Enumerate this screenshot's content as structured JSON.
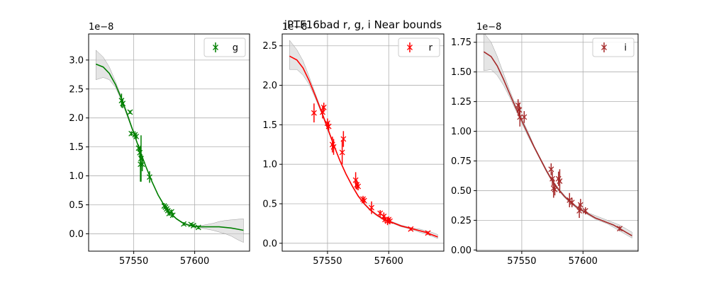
{
  "figure_title": "iPTF16bad  r, g, i Near bounds",
  "chart_data": [
    {
      "type": "scatter",
      "band": "g",
      "color": "#008000",
      "offset_label": "1e−8",
      "xlim": [
        57513,
        57645
      ],
      "ylim": [
        -0.3,
        3.45
      ],
      "xticks": [
        57550,
        57600
      ],
      "xtick_labels": [
        "57550",
        "57600"
      ],
      "yticks": [
        0.0,
        0.5,
        1.0,
        1.5,
        2.0,
        2.5,
        3.0
      ],
      "ytick_labels": [
        "0.0",
        "0.5",
        "1.0",
        "1.5",
        "2.0",
        "2.5",
        "3.0"
      ],
      "grid": true,
      "legend": {
        "label": "g",
        "position": "top-right"
      },
      "points": [
        {
          "x": 57540,
          "y": 2.3,
          "err": 0.12
        },
        {
          "x": 57541,
          "y": 2.25,
          "err": 0.08
        },
        {
          "x": 57547,
          "y": 2.1,
          "err": 0.03
        },
        {
          "x": 57548,
          "y": 1.73,
          "err": 0.04
        },
        {
          "x": 57551,
          "y": 1.71,
          "err": 0.06
        },
        {
          "x": 57552,
          "y": 1.68,
          "err": 0.05
        },
        {
          "x": 57554,
          "y": 1.48,
          "err": 0.06
        },
        {
          "x": 57555,
          "y": 1.4,
          "err": 0.1
        },
        {
          "x": 57555.5,
          "y": 1.2,
          "err": 0.3
        },
        {
          "x": 57556,
          "y": 1.3,
          "err": 0.4
        },
        {
          "x": 57557,
          "y": 1.2,
          "err": 0.12
        },
        {
          "x": 57563,
          "y": 0.98,
          "err": 0.1
        },
        {
          "x": 57575,
          "y": 0.48,
          "err": 0.05
        },
        {
          "x": 57576,
          "y": 0.46,
          "err": 0.04
        },
        {
          "x": 57577,
          "y": 0.43,
          "err": 0.04
        },
        {
          "x": 57578,
          "y": 0.4,
          "err": 0.05
        },
        {
          "x": 57579,
          "y": 0.35,
          "err": 0.04
        },
        {
          "x": 57581,
          "y": 0.38,
          "err": 0.04
        },
        {
          "x": 57582,
          "y": 0.32,
          "err": 0.04
        },
        {
          "x": 57591,
          "y": 0.17,
          "err": 0.03
        },
        {
          "x": 57597,
          "y": 0.16,
          "err": 0.03
        },
        {
          "x": 57599,
          "y": 0.14,
          "err": 0.03
        },
        {
          "x": 57603,
          "y": 0.11,
          "err": 0.03
        }
      ],
      "fit": {
        "x": [
          57519,
          57525,
          57530,
          57535,
          57540,
          57545,
          57550,
          57555,
          57560,
          57565,
          57570,
          57575,
          57580,
          57585,
          57590,
          57595,
          57600,
          57605,
          57610,
          57615,
          57620,
          57625,
          57630,
          57635,
          57640
        ],
        "y": [
          2.93,
          2.88,
          2.77,
          2.58,
          2.33,
          2.04,
          1.74,
          1.44,
          1.16,
          0.9,
          0.67,
          0.49,
          0.36,
          0.26,
          0.19,
          0.15,
          0.13,
          0.12,
          0.12,
          0.12,
          0.12,
          0.11,
          0.1,
          0.08,
          0.06
        ],
        "lower": [
          2.66,
          2.7,
          2.66,
          2.53,
          2.3,
          2.01,
          1.72,
          1.43,
          1.15,
          0.89,
          0.66,
          0.48,
          0.35,
          0.25,
          0.18,
          0.14,
          0.12,
          0.1,
          0.08,
          0.06,
          0.03,
          0.0,
          -0.04,
          -0.1,
          -0.15
        ],
        "upper": [
          3.17,
          3.05,
          2.88,
          2.63,
          2.36,
          2.07,
          1.76,
          1.45,
          1.17,
          0.91,
          0.68,
          0.5,
          0.37,
          0.27,
          0.2,
          0.16,
          0.14,
          0.14,
          0.16,
          0.18,
          0.21,
          0.23,
          0.24,
          0.25,
          0.26
        ]
      }
    },
    {
      "type": "scatter",
      "band": "r",
      "color": "#ff0000",
      "offset_label": "1e−8",
      "xlim": [
        57513,
        57645
      ],
      "ylim": [
        -0.1,
        2.65
      ],
      "xticks": [
        57550,
        57600
      ],
      "xtick_labels": [
        "57550",
        "57600"
      ],
      "yticks": [
        0.0,
        0.5,
        1.0,
        1.5,
        2.0,
        2.5
      ],
      "ytick_labels": [
        "0.0",
        "0.5",
        "1.0",
        "1.5",
        "2.0",
        "2.5"
      ],
      "grid": true,
      "legend": {
        "label": "r",
        "position": "top-right"
      },
      "points": [
        {
          "x": 57539,
          "y": 1.65,
          "err": 0.12
        },
        {
          "x": 57546,
          "y": 1.66,
          "err": 0.08
        },
        {
          "x": 57547,
          "y": 1.72,
          "err": 0.06
        },
        {
          "x": 57550,
          "y": 1.52,
          "err": 0.06
        },
        {
          "x": 57551,
          "y": 1.48,
          "err": 0.05
        },
        {
          "x": 57554,
          "y": 1.25,
          "err": 0.1
        },
        {
          "x": 57555,
          "y": 1.22,
          "err": 0.1
        },
        {
          "x": 57562,
          "y": 1.15,
          "err": 0.15
        },
        {
          "x": 57563,
          "y": 1.32,
          "err": 0.1
        },
        {
          "x": 57573,
          "y": 0.8,
          "err": 0.1
        },
        {
          "x": 57574,
          "y": 0.74,
          "err": 0.06
        },
        {
          "x": 57575,
          "y": 0.72,
          "err": 0.05
        },
        {
          "x": 57579,
          "y": 0.56,
          "err": 0.04
        },
        {
          "x": 57580,
          "y": 0.54,
          "err": 0.04
        },
        {
          "x": 57586,
          "y": 0.45,
          "err": 0.08
        },
        {
          "x": 57593,
          "y": 0.38,
          "err": 0.04
        },
        {
          "x": 57596,
          "y": 0.34,
          "err": 0.05
        },
        {
          "x": 57597,
          "y": 0.3,
          "err": 0.04
        },
        {
          "x": 57599,
          "y": 0.28,
          "err": 0.05
        },
        {
          "x": 57600,
          "y": 0.3,
          "err": 0.04
        },
        {
          "x": 57601,
          "y": 0.28,
          "err": 0.04
        },
        {
          "x": 57618,
          "y": 0.18,
          "err": 0.02
        },
        {
          "x": 57632,
          "y": 0.13,
          "err": 0.02
        }
      ],
      "fit": {
        "x": [
          57519,
          57525,
          57530,
          57535,
          57540,
          57545,
          57550,
          57555,
          57560,
          57565,
          57570,
          57575,
          57580,
          57585,
          57590,
          57595,
          57600,
          57605,
          57610,
          57615,
          57620,
          57625,
          57630,
          57635,
          57640
        ],
        "y": [
          2.37,
          2.32,
          2.22,
          2.06,
          1.87,
          1.67,
          1.46,
          1.25,
          1.05,
          0.88,
          0.73,
          0.6,
          0.5,
          0.42,
          0.36,
          0.31,
          0.28,
          0.25,
          0.22,
          0.2,
          0.18,
          0.16,
          0.14,
          0.11,
          0.08
        ],
        "lower": [
          2.2,
          2.2,
          2.13,
          2.01,
          1.84,
          1.65,
          1.44,
          1.24,
          1.04,
          0.87,
          0.72,
          0.59,
          0.49,
          0.41,
          0.35,
          0.3,
          0.27,
          0.24,
          0.21,
          0.19,
          0.17,
          0.14,
          0.12,
          0.09,
          0.06
        ],
        "upper": [
          2.57,
          2.45,
          2.31,
          2.11,
          1.9,
          1.69,
          1.48,
          1.26,
          1.06,
          0.89,
          0.74,
          0.61,
          0.51,
          0.43,
          0.37,
          0.32,
          0.29,
          0.26,
          0.23,
          0.21,
          0.19,
          0.18,
          0.16,
          0.14,
          0.11
        ]
      }
    },
    {
      "type": "scatter",
      "band": "i",
      "color": "#a52a2a",
      "offset_label": "1e−8",
      "xlim": [
        57513,
        57645
      ],
      "ylim": [
        -0.01,
        1.82
      ],
      "xticks": [
        57550,
        57600
      ],
      "xtick_labels": [
        "57550",
        "57600"
      ],
      "yticks": [
        0.0,
        0.25,
        0.5,
        0.75,
        1.0,
        1.25,
        1.5,
        1.75
      ],
      "ytick_labels": [
        "0.00",
        "0.25",
        "0.50",
        "0.75",
        "1.00",
        "1.25",
        "1.50",
        "1.75"
      ],
      "grid": true,
      "legend": {
        "label": "i",
        "position": "top-right"
      },
      "points": [
        {
          "x": 57547,
          "y": 1.22,
          "err": 0.05
        },
        {
          "x": 57548,
          "y": 1.18,
          "err": 0.06
        },
        {
          "x": 57548.5,
          "y": 1.12,
          "err": 0.08
        },
        {
          "x": 57552,
          "y": 1.12,
          "err": 0.05
        },
        {
          "x": 57574,
          "y": 0.68,
          "err": 0.05
        },
        {
          "x": 57575,
          "y": 0.6,
          "err": 0.06
        },
        {
          "x": 57576,
          "y": 0.52,
          "err": 0.08
        },
        {
          "x": 57577,
          "y": 0.51,
          "err": 0.05
        },
        {
          "x": 57580,
          "y": 0.6,
          "err": 0.06
        },
        {
          "x": 57581,
          "y": 0.58,
          "err": 0.1
        },
        {
          "x": 57589,
          "y": 0.42,
          "err": 0.06
        },
        {
          "x": 57591,
          "y": 0.4,
          "err": 0.04
        },
        {
          "x": 57597,
          "y": 0.33,
          "err": 0.06
        },
        {
          "x": 57598,
          "y": 0.38,
          "err": 0.05
        },
        {
          "x": 57602,
          "y": 0.33,
          "err": 0.03
        },
        {
          "x": 57630,
          "y": 0.18,
          "err": 0.02
        }
      ],
      "fit": {
        "x": [
          57519,
          57525,
          57530,
          57535,
          57540,
          57545,
          57550,
          57555,
          57560,
          57565,
          57570,
          57575,
          57580,
          57585,
          57590,
          57595,
          57600,
          57605,
          57610,
          57615,
          57620,
          57625,
          57630,
          57635,
          57640
        ],
        "y": [
          1.67,
          1.63,
          1.55,
          1.44,
          1.32,
          1.2,
          1.09,
          0.98,
          0.87,
          0.77,
          0.67,
          0.58,
          0.51,
          0.45,
          0.4,
          0.36,
          0.33,
          0.3,
          0.27,
          0.25,
          0.23,
          0.21,
          0.18,
          0.15,
          0.12
        ],
        "lower": [
          1.51,
          1.52,
          1.47,
          1.39,
          1.29,
          1.18,
          1.07,
          0.96,
          0.86,
          0.76,
          0.66,
          0.57,
          0.5,
          0.44,
          0.39,
          0.35,
          0.32,
          0.29,
          0.26,
          0.24,
          0.22,
          0.19,
          0.16,
          0.13,
          0.1
        ],
        "upper": [
          1.83,
          1.75,
          1.63,
          1.49,
          1.35,
          1.22,
          1.11,
          1.0,
          0.88,
          0.78,
          0.68,
          0.59,
          0.52,
          0.46,
          0.41,
          0.37,
          0.34,
          0.31,
          0.29,
          0.27,
          0.25,
          0.23,
          0.21,
          0.18,
          0.15
        ]
      }
    }
  ]
}
